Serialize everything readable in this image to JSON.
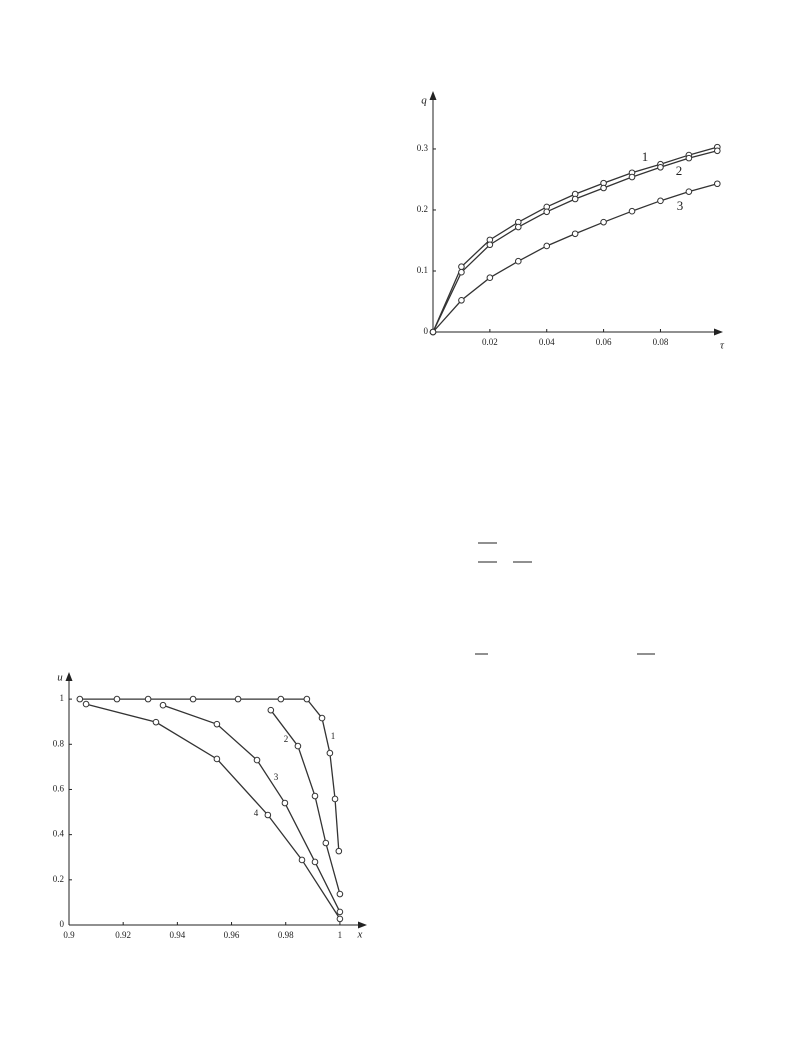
{
  "chart_data": [
    {
      "type": "line",
      "x_label": "τ",
      "y_label": "q",
      "xlim": [
        0,
        0.102
      ],
      "ylim": [
        0,
        0.395
      ],
      "xticks": [
        0.02,
        0.04,
        0.06,
        0.08
      ],
      "yticks": [
        0,
        0.1,
        0.2,
        0.3
      ],
      "color": "#333333",
      "series": [
        {
          "name": "1",
          "x": [
            0,
            0.01,
            0.02,
            0.03,
            0.04,
            0.05,
            0.06,
            0.07,
            0.08,
            0.09,
            0.1
          ],
          "values": [
            0,
            0.107,
            0.151,
            0.18,
            0.205,
            0.226,
            0.244,
            0.261,
            0.275,
            0.29,
            0.303
          ]
        },
        {
          "name": "2",
          "x": [
            0,
            0.01,
            0.02,
            0.03,
            0.04,
            0.05,
            0.06,
            0.07,
            0.08,
            0.09,
            0.1
          ],
          "values": [
            0,
            0.098,
            0.143,
            0.172,
            0.197,
            0.218,
            0.236,
            0.254,
            0.27,
            0.285,
            0.297
          ]
        },
        {
          "name": "3",
          "x": [
            0,
            0.01,
            0.02,
            0.03,
            0.04,
            0.05,
            0.06,
            0.07,
            0.08,
            0.09,
            0.1
          ],
          "values": [
            0,
            0.052,
            0.089,
            0.116,
            0.141,
            0.161,
            0.18,
            0.198,
            0.215,
            0.23,
            0.243
          ]
        }
      ]
    },
    {
      "type": "line",
      "x_label": "x",
      "y_label": "u",
      "xlim": [
        0.9,
        1.01
      ],
      "ylim": [
        0,
        1.12
      ],
      "xticks": [
        0.9,
        0.92,
        0.94,
        0.96,
        0.98,
        1
      ],
      "yticks": [
        0,
        0.2,
        0.4,
        0.6,
        0.8,
        1
      ],
      "color": "#333333",
      "series": [
        {
          "name": "1",
          "x": [
            0.904,
            0.9177,
            0.9292,
            0.9458,
            0.9624,
            0.9782,
            0.9878,
            0.9934,
            0.9963,
            0.9982,
            0.9996
          ],
          "values": [
            1,
            1,
            1,
            1,
            1,
            1,
            1,
            0.916,
            0.761,
            0.558,
            0.327
          ]
        },
        {
          "name": "2",
          "x": [
            0.9745,
            0.9845,
            0.9908,
            0.9948,
            1.0
          ],
          "values": [
            0.951,
            0.792,
            0.571,
            0.363,
            0.137
          ]
        },
        {
          "name": "3",
          "x": [
            0.9347,
            0.9546,
            0.9694,
            0.9797,
            0.9908,
            1.0
          ],
          "values": [
            0.973,
            0.889,
            0.73,
            0.54,
            0.279,
            0.058
          ]
        },
        {
          "name": "4",
          "x": [
            0.9063,
            0.9321,
            0.9546,
            0.9734,
            0.986,
            1.0
          ],
          "values": [
            0.978,
            0.898,
            0.735,
            0.487,
            0.288,
            0.027
          ]
        }
      ]
    }
  ]
}
